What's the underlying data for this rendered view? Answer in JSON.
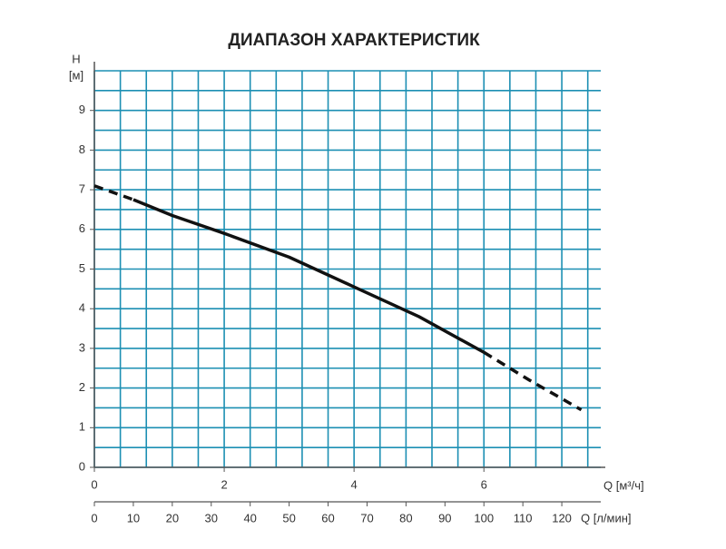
{
  "chart_data": {
    "type": "line",
    "title": "ДИАПАЗОН ХАРАКТЕРИСТИК",
    "y_label": "H",
    "y_unit": "[м]",
    "x_label": "Q [м³/ч]",
    "x2_label": "Q [л/мин]",
    "xlim": [
      0,
      7.8
    ],
    "xticks": [
      0,
      2,
      4,
      6
    ],
    "x2lim": [
      0,
      130
    ],
    "x2ticks": [
      0,
      10,
      20,
      30,
      40,
      50,
      60,
      70,
      80,
      90,
      100,
      110,
      120
    ],
    "ylim": [
      0,
      10
    ],
    "yticks": [
      0,
      1,
      2,
      3,
      4,
      5,
      6,
      7,
      8,
      9
    ],
    "grid": true,
    "grid_minor": {
      "x": 0.4,
      "y": 0.5
    },
    "grid_color": "#1c8fb3",
    "series": [
      {
        "color": "#111111",
        "dashed": true,
        "x": [
          0,
          0.6
        ],
        "values": [
          7.1,
          6.75
        ]
      },
      {
        "color": "#111111",
        "dashed": false,
        "x": [
          0.6,
          1.2,
          2,
          3,
          4,
          5,
          6
        ],
        "values": [
          6.75,
          6.35,
          5.9,
          5.3,
          4.55,
          3.8,
          2.9
        ]
      },
      {
        "color": "#111111",
        "dashed": true,
        "x": [
          6,
          6.7,
          7.5
        ],
        "values": [
          2.9,
          2.2,
          1.45
        ]
      }
    ]
  }
}
